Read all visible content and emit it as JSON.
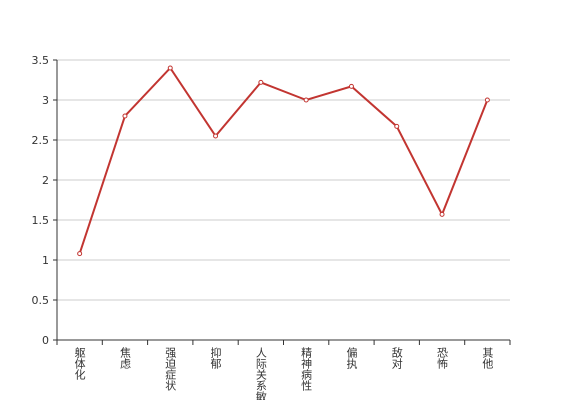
{
  "chart_data": {
    "type": "line",
    "categories": [
      "躯体化",
      "焦虑",
      "强迫症状",
      "抑郁",
      "人际关系敏感",
      "精神病性",
      "偏执",
      "敌对",
      "恐怖",
      "其他"
    ],
    "values": [
      1.08,
      2.8,
      3.4,
      2.55,
      3.22,
      3.0,
      3.17,
      2.67,
      1.57,
      3.0
    ],
    "color": "#c23531",
    "ylim": [
      0,
      3.5
    ],
    "yticks": [
      0,
      0.5,
      1,
      1.5,
      2,
      2.5,
      3,
      3.5
    ],
    "grid": true
  }
}
